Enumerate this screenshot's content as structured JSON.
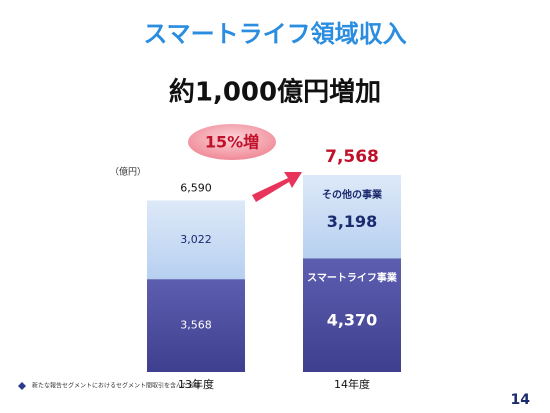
{
  "chart_data": {
    "type": "stacked-bar",
    "title": "スマートライフ領域収入",
    "subtitle": "約1,000億円増加",
    "unit": "（億円）",
    "annotation": "15%増",
    "footnote": "新たな報告セグメントにおけるセグメント間取引を含んだ金額",
    "page_number": "14",
    "categories": [
      "13年度",
      "14年度"
    ],
    "series": [
      {
        "name": "スマートライフ事業",
        "color": "#4b4c9e",
        "values": [
          3568,
          4370
        ],
        "value_labels": [
          "3,568",
          "4,370"
        ]
      },
      {
        "name": "その他の事業",
        "color": "#c6dbf4",
        "values": [
          3022,
          3198
        ],
        "value_labels": [
          "3,022",
          "3,198"
        ]
      }
    ],
    "totals": [
      6590,
      7568
    ],
    "total_labels": [
      "6,590",
      "7,568"
    ]
  }
}
